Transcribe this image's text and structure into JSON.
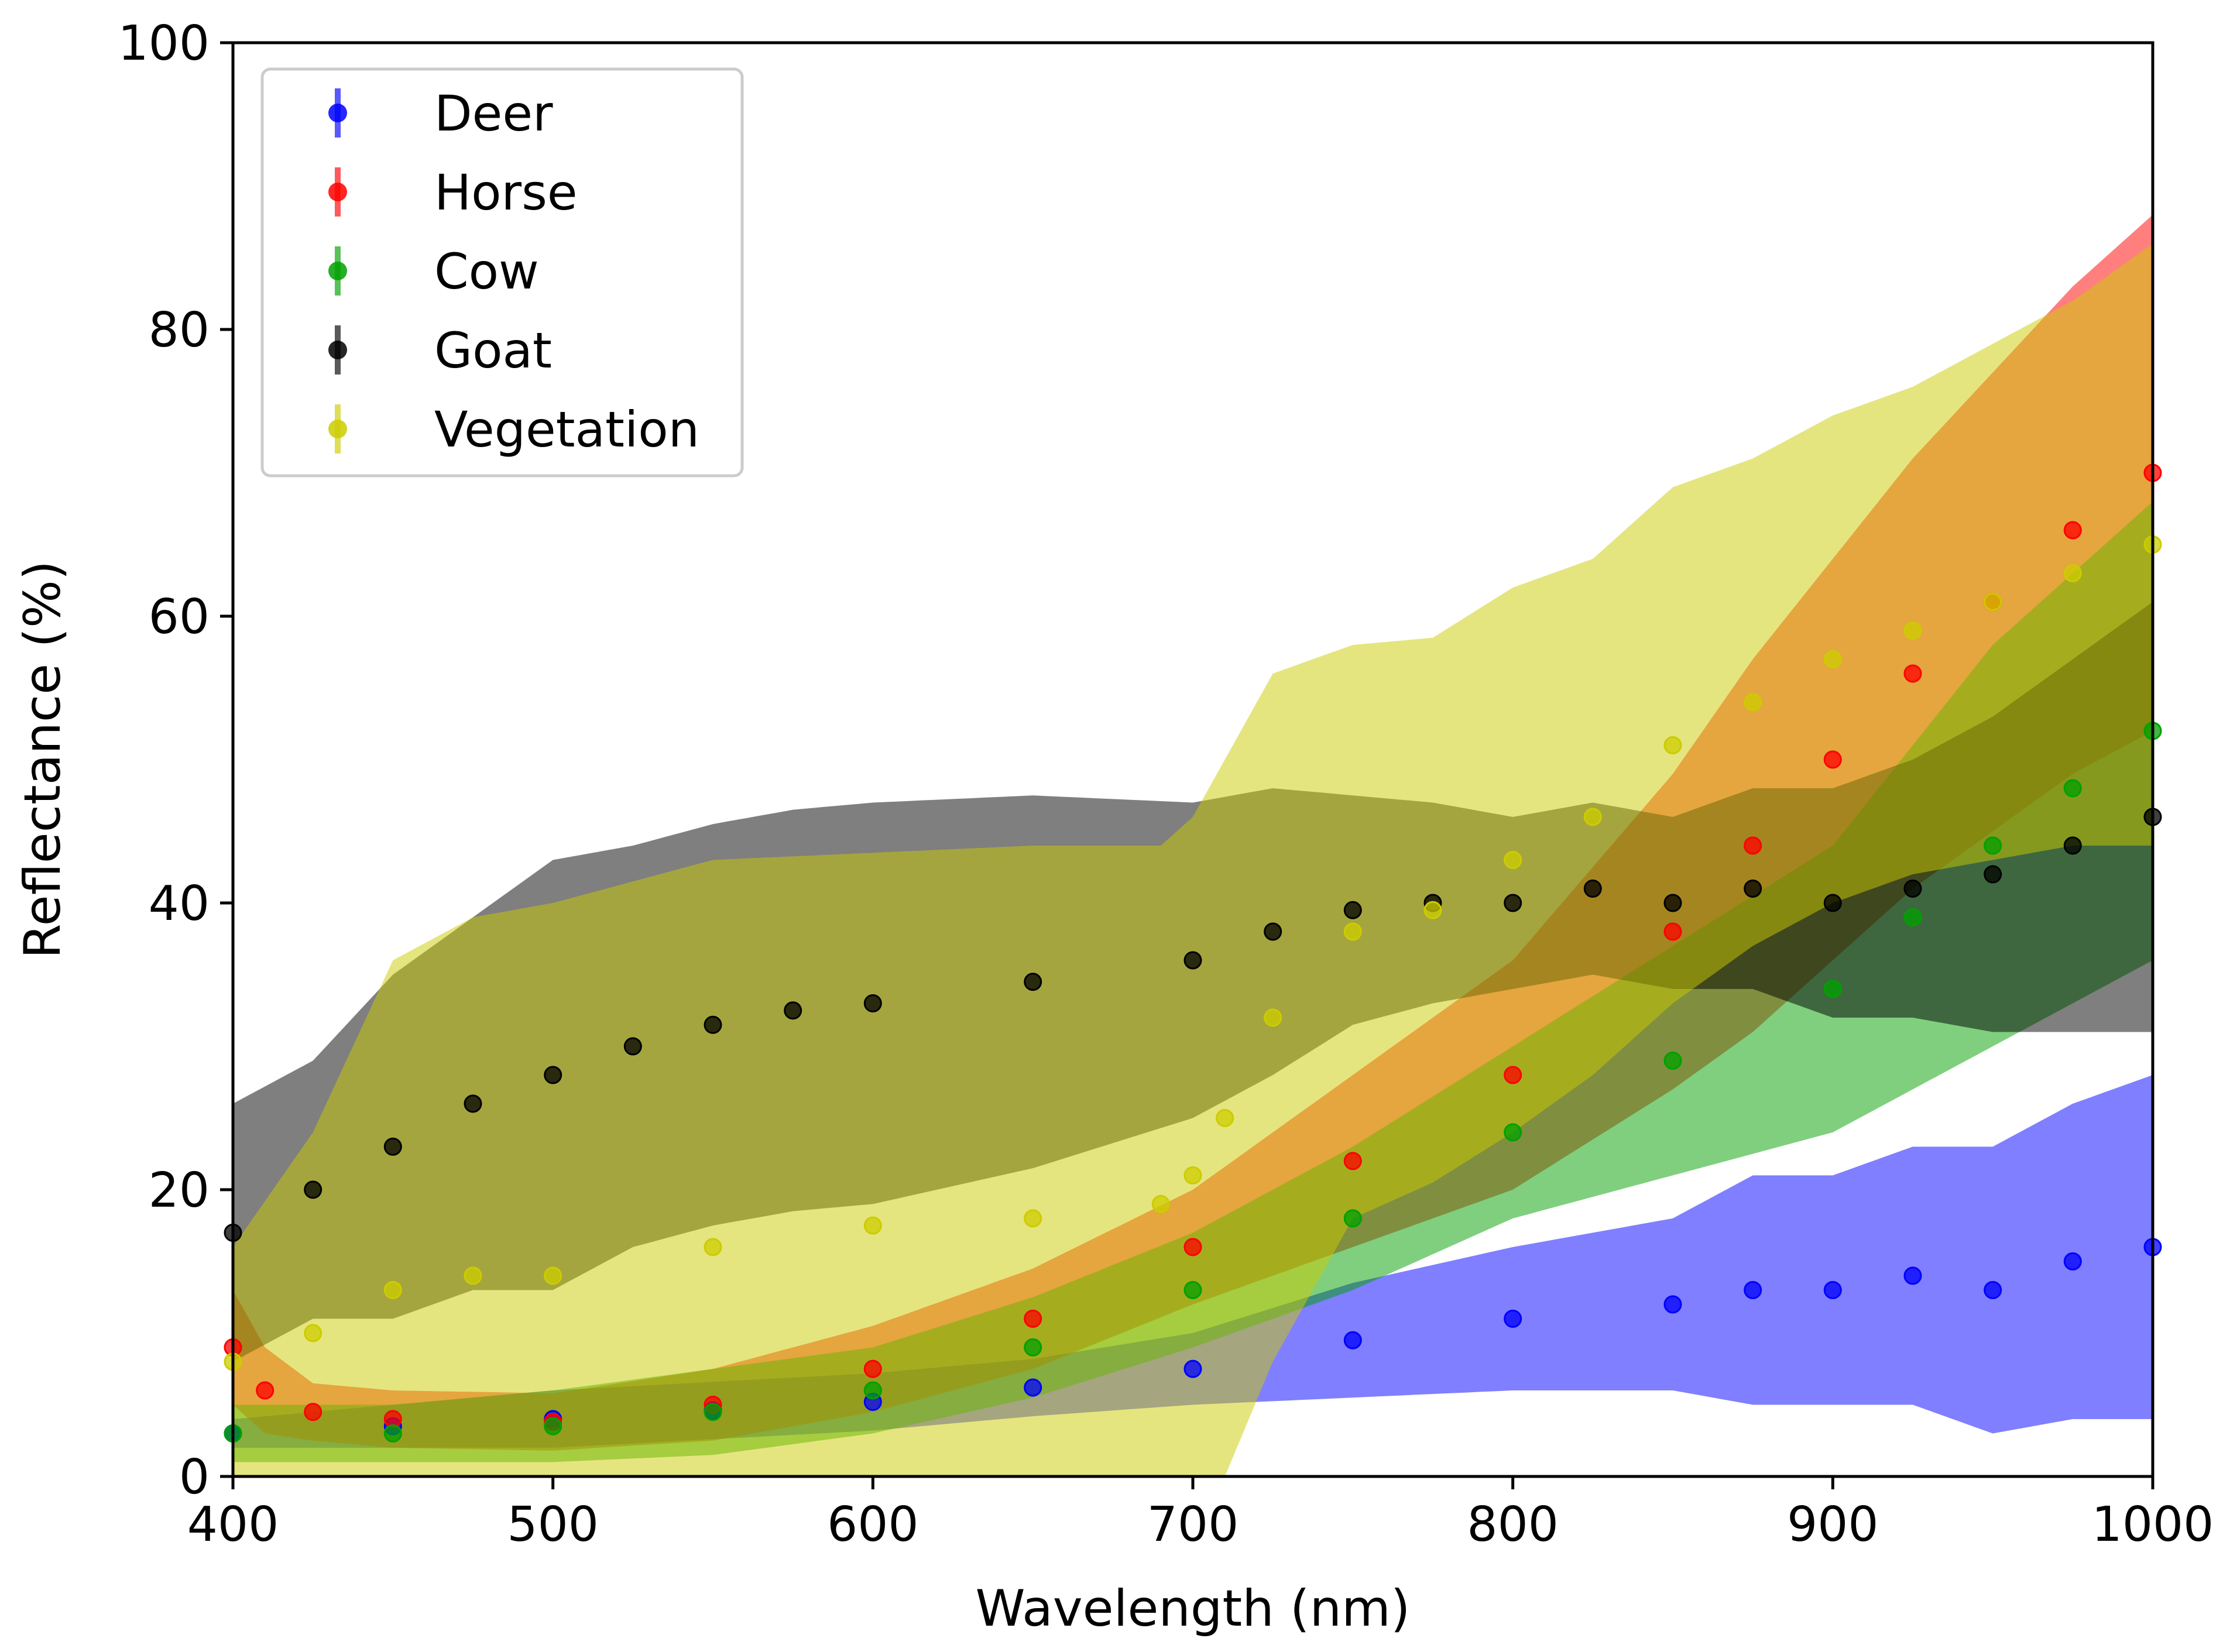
{
  "chart_data": {
    "type": "scatter",
    "title": "",
    "xlabel": "Wavelength (nm)",
    "ylabel": "Reflectance (%)",
    "xlim": [
      400,
      1000
    ],
    "ylim": [
      0,
      100
    ],
    "xticks": [
      400,
      500,
      600,
      700,
      800,
      900,
      1000
    ],
    "yticks": [
      0,
      20,
      40,
      60,
      80,
      100
    ],
    "grid": false,
    "legend": "top-left",
    "error_bars": true,
    "series": [
      {
        "name": "Deer",
        "color": "#0000ff",
        "x": [
          400,
          450,
          500,
          550,
          600,
          650,
          700,
          750,
          800,
          850,
          875,
          900,
          925,
          950,
          975,
          1000
        ],
        "y": [
          3,
          3.5,
          4,
          4.6,
          5.2,
          6.2,
          7.5,
          9.5,
          11,
          12,
          13,
          13,
          14,
          13,
          15,
          16
        ],
        "err": [
          1,
          1.5,
          2,
          2,
          2,
          2,
          2.5,
          4,
          5,
          6,
          8,
          8,
          9,
          10,
          11,
          12
        ]
      },
      {
        "name": "Horse",
        "color": "#ff0000",
        "x": [
          400,
          410,
          425,
          450,
          500,
          550,
          600,
          650,
          700,
          750,
          800,
          850,
          875,
          900,
          925,
          950,
          975,
          1000
        ],
        "y": [
          9,
          6,
          4.5,
          4,
          3.8,
          5,
          7.5,
          11,
          16,
          22,
          28,
          38,
          44,
          50,
          56,
          61,
          66,
          70
        ],
        "err": [
          4,
          3,
          2,
          2,
          2,
          2.5,
          3,
          3.5,
          4,
          6,
          8,
          11,
          13,
          14,
          15,
          16,
          17,
          18
        ]
      },
      {
        "name": "Cow",
        "color": "#00a000",
        "x": [
          400,
          450,
          500,
          550,
          600,
          650,
          700,
          750,
          800,
          850,
          900,
          925,
          950,
          975,
          1000
        ],
        "y": [
          3,
          3,
          3.5,
          4.5,
          6,
          9,
          13,
          18,
          24,
          29,
          34,
          39,
          44,
          48,
          52
        ],
        "err": [
          2,
          2,
          2.5,
          3,
          3,
          3.5,
          4,
          5,
          6,
          8,
          10,
          12,
          14,
          15,
          16
        ]
      },
      {
        "name": "Goat",
        "color": "#000000",
        "x": [
          400,
          425,
          450,
          475,
          500,
          525,
          550,
          575,
          600,
          650,
          700,
          725,
          750,
          775,
          800,
          825,
          850,
          875,
          900,
          925,
          950,
          975,
          1000
        ],
        "y": [
          17,
          20,
          23,
          26,
          28,
          30,
          31.5,
          32.5,
          33,
          34.5,
          36,
          38,
          39.5,
          40,
          40,
          41,
          40,
          41,
          40,
          41,
          42,
          44,
          46
        ],
        "err": [
          9,
          9,
          12,
          13,
          15,
          14,
          14,
          14,
          14,
          13,
          11,
          10,
          8,
          7,
          6,
          6,
          6,
          7,
          8,
          9,
          11,
          13,
          15
        ]
      },
      {
        "name": "Vegetation",
        "color": "#cccc00",
        "x": [
          400,
          425,
          450,
          475,
          500,
          550,
          600,
          650,
          690,
          700,
          710,
          725,
          750,
          775,
          800,
          825,
          850,
          875,
          900,
          925,
          950,
          975,
          1000
        ],
        "y": [
          8,
          10,
          13,
          14,
          14,
          16,
          17.5,
          18,
          19,
          21,
          25,
          32,
          38,
          39.5,
          43,
          46,
          51,
          54,
          57,
          59,
          61,
          63,
          65
        ],
        "err": [
          8,
          14,
          23,
          25,
          26,
          27,
          26,
          26,
          25,
          25,
          25,
          24,
          20,
          19,
          19,
          18,
          18,
          17,
          17,
          17,
          18,
          19,
          21
        ]
      }
    ]
  }
}
